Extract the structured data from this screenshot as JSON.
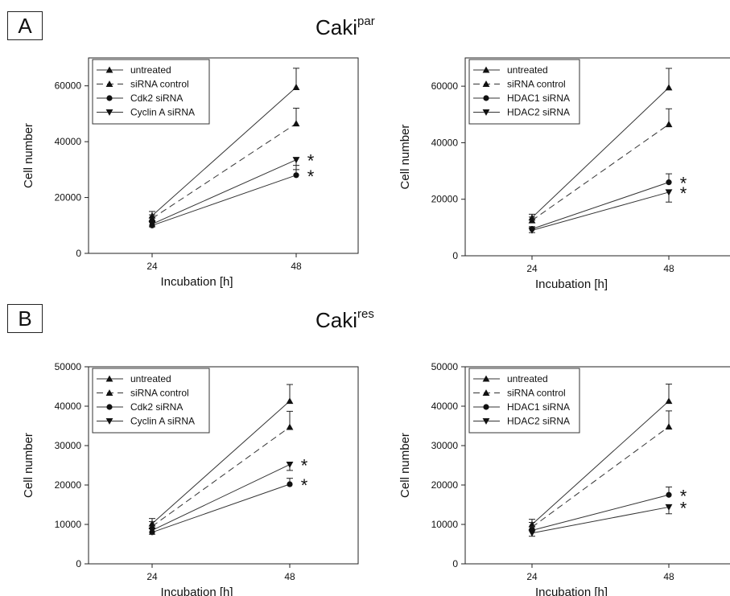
{
  "panels": [
    {
      "label": "A",
      "title_base": "Caki",
      "title_sup": "par"
    },
    {
      "label": "B",
      "title_base": "Caki",
      "title_sup": "res"
    }
  ],
  "chart_data": [
    {
      "type": "line",
      "xlabel": "Incubation [h]",
      "ylabel": "Cell number",
      "categories": [
        "24",
        "48"
      ],
      "ylim": [
        0,
        70000
      ],
      "yticks": [
        0,
        20000,
        40000,
        60000
      ],
      "grid": false,
      "legend_position": "top-left",
      "series": [
        {
          "name": "untreated",
          "marker": "triangle-up",
          "dashed": false,
          "values": [
            13500,
            59500
          ],
          "err": [
            1500,
            6800
          ],
          "sig": ""
        },
        {
          "name": "siRNA control",
          "marker": "triangle-up",
          "dashed": true,
          "values": [
            12500,
            46500
          ],
          "err": [
            1300,
            5500
          ],
          "sig": ""
        },
        {
          "name": "Cdk2 siRNA",
          "marker": "circle",
          "dashed": false,
          "values": [
            10000,
            28000
          ],
          "err": [
            1200,
            3500
          ],
          "sig": "*"
        },
        {
          "name": "Cyclin A siRNA",
          "marker": "triangle-down",
          "dashed": false,
          "values": [
            10500,
            33500
          ],
          "err": [
            1000,
            3500
          ],
          "sig": "*"
        }
      ]
    },
    {
      "type": "line",
      "xlabel": "Incubation [h]",
      "ylabel": "Cell number",
      "categories": [
        "24",
        "48"
      ],
      "ylim": [
        0,
        70000
      ],
      "yticks": [
        0,
        20000,
        40000,
        60000
      ],
      "grid": false,
      "legend_position": "top-left",
      "series": [
        {
          "name": "untreated",
          "marker": "triangle-up",
          "dashed": false,
          "values": [
            13500,
            59500
          ],
          "err": [
            1200,
            6800
          ],
          "sig": ""
        },
        {
          "name": "siRNA control",
          "marker": "triangle-up",
          "dashed": true,
          "values": [
            12500,
            46500
          ],
          "err": [
            1200,
            5500
          ],
          "sig": ""
        },
        {
          "name": "HDAC1 siRNA",
          "marker": "circle",
          "dashed": false,
          "values": [
            9500,
            26000
          ],
          "err": [
            800,
            3000
          ],
          "sig": "*"
        },
        {
          "name": "HDAC2 siRNA",
          "marker": "triangle-down",
          "dashed": false,
          "values": [
            9000,
            22500
          ],
          "err": [
            800,
            3500
          ],
          "sig": "*"
        }
      ]
    },
    {
      "type": "line",
      "xlabel": "Incubation [h]",
      "ylabel": "Cell number",
      "categories": [
        "24",
        "48"
      ],
      "ylim": [
        0,
        50000
      ],
      "yticks": [
        0,
        10000,
        20000,
        30000,
        40000,
        50000
      ],
      "grid": false,
      "legend_position": "top-left",
      "series": [
        {
          "name": "untreated",
          "marker": "triangle-up",
          "dashed": false,
          "values": [
            10200,
            41300
          ],
          "err": [
            1300,
            4200
          ],
          "sig": ""
        },
        {
          "name": "siRNA control",
          "marker": "triangle-up",
          "dashed": true,
          "values": [
            9500,
            34700
          ],
          "err": [
            1200,
            4000
          ],
          "sig": ""
        },
        {
          "name": "Cdk2 siRNA",
          "marker": "circle",
          "dashed": false,
          "values": [
            8000,
            20200
          ],
          "err": [
            900,
            1500
          ],
          "sig": "*"
        },
        {
          "name": "Cyclin A siRNA",
          "marker": "triangle-down",
          "dashed": false,
          "values": [
            8500,
            25200
          ],
          "err": [
            1000,
            1500
          ],
          "sig": "*"
        }
      ]
    },
    {
      "type": "line",
      "xlabel": "Incubation [h]",
      "ylabel": "Cell number",
      "categories": [
        "24",
        "48"
      ],
      "ylim": [
        0,
        50000
      ],
      "yticks": [
        0,
        10000,
        20000,
        30000,
        40000,
        50000
      ],
      "grid": false,
      "legend_position": "top-left",
      "series": [
        {
          "name": "untreated",
          "marker": "triangle-up",
          "dashed": false,
          "values": [
            10000,
            41300
          ],
          "err": [
            1300,
            4300
          ],
          "sig": ""
        },
        {
          "name": "siRNA control",
          "marker": "triangle-up",
          "dashed": true,
          "values": [
            9300,
            34800
          ],
          "err": [
            1200,
            4000
          ],
          "sig": ""
        },
        {
          "name": "HDAC1 siRNA",
          "marker": "circle",
          "dashed": false,
          "values": [
            8500,
            17500
          ],
          "err": [
            900,
            2000
          ],
          "sig": "*"
        },
        {
          "name": "HDAC2 siRNA",
          "marker": "triangle-down",
          "dashed": false,
          "values": [
            7800,
            14400
          ],
          "err": [
            800,
            1700
          ],
          "sig": "*"
        }
      ]
    }
  ]
}
